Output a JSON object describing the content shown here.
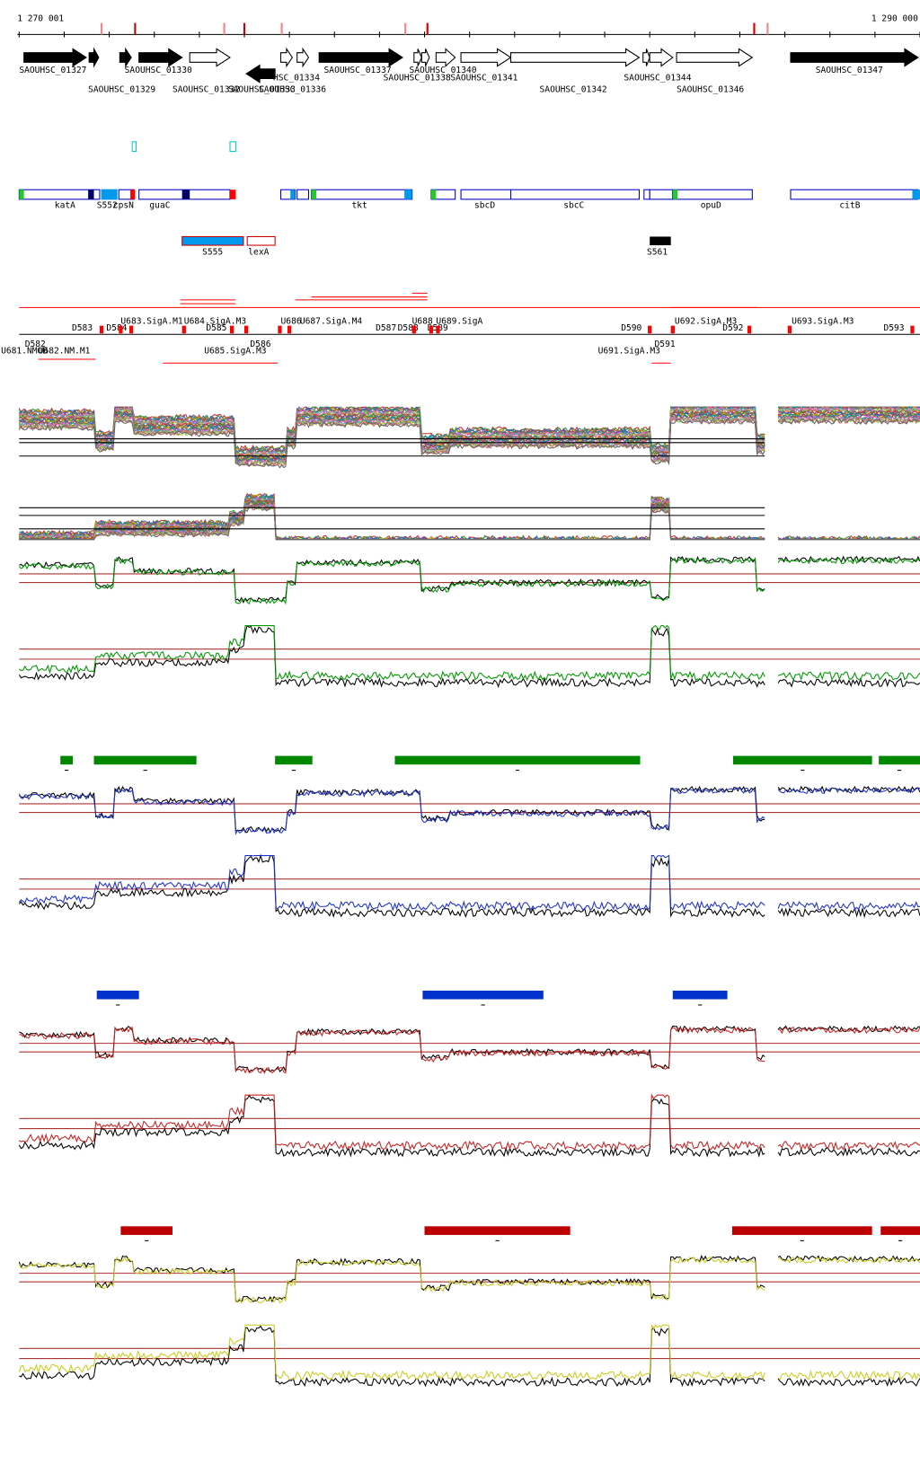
{
  "scale": {
    "start": "1 270 001",
    "end": "1 290 000"
  },
  "genes": [
    "SAOUHSC_01327",
    "SAOUHSC_01329",
    "SAOUHSC_01330",
    "SAOUHSC_01332",
    "SAOUHSC_01333",
    "HSC_01334",
    "SAOUHSC_01336",
    "SAOUHSC_01337",
    "SAOUHSC_01338",
    "SAOUHSC_01340",
    "SAOUHSC_01341",
    "SAOUHSC_01342",
    "SAOUHSC_01344",
    "SAOUHSC_01346",
    "SAOUHSC_01347"
  ],
  "annotations": [
    "katA",
    "S552",
    "cpsN",
    "guaC",
    "tkt",
    "sbcD",
    "sbcC",
    "opuD",
    "citB"
  ],
  "regulatory": [
    "S555",
    "lexA",
    "S561"
  ],
  "sites": [
    "U683.SigA.M1",
    "U684.SigA.M3",
    "U686",
    "U687.SigA.M4",
    "U688",
    "U689.SigA",
    "U692.SigA.M3",
    "U693.SigA.M3",
    "D583",
    "D584",
    "D585",
    "D586",
    "D587",
    "D588",
    "D589",
    "D590",
    "D591",
    "D592",
    "D593",
    "D582",
    "U681.NMOB",
    "U682.NM.M1",
    "U685.SigA.M3",
    "U691.SigA.M3"
  ]
}
